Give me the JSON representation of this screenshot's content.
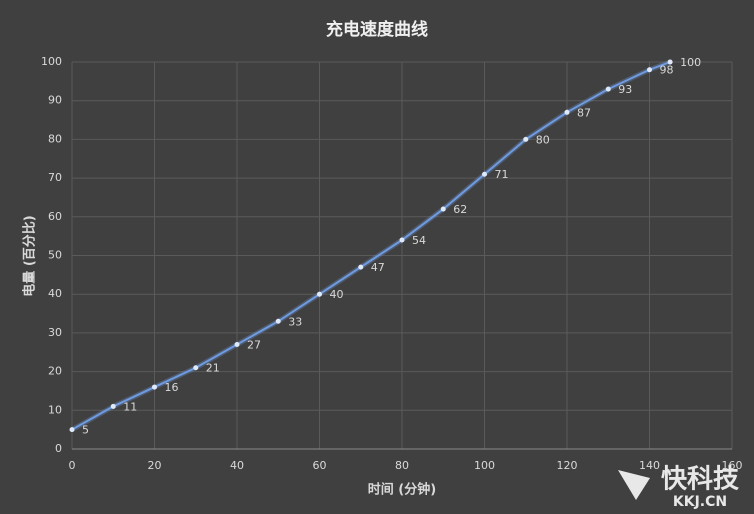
{
  "chart_data": {
    "type": "line",
    "title": "充电速度曲线",
    "x_label": "时间 (分钟)",
    "y_label": "电量 (百分比)",
    "x": [
      0,
      10,
      20,
      30,
      40,
      50,
      60,
      70,
      80,
      90,
      100,
      110,
      120,
      130,
      140,
      145
    ],
    "series": [
      {
        "name": "电量",
        "color": "#6f9be0",
        "values": [
          5,
          11,
          16,
          21,
          27,
          33,
          40,
          47,
          54,
          62,
          71,
          80,
          87,
          93,
          98,
          100
        ]
      }
    ],
    "xlim": [
      0,
      160
    ],
    "xticks": [
      0,
      20,
      40,
      60,
      80,
      100,
      120,
      140,
      160
    ],
    "ylim": [
      0,
      100
    ],
    "yticks": [
      0,
      10,
      20,
      30,
      40,
      50,
      60,
      70,
      80,
      90,
      100
    ],
    "grid": true,
    "watermark": {
      "brand": "快科技",
      "url": "KKJ.CN"
    }
  }
}
